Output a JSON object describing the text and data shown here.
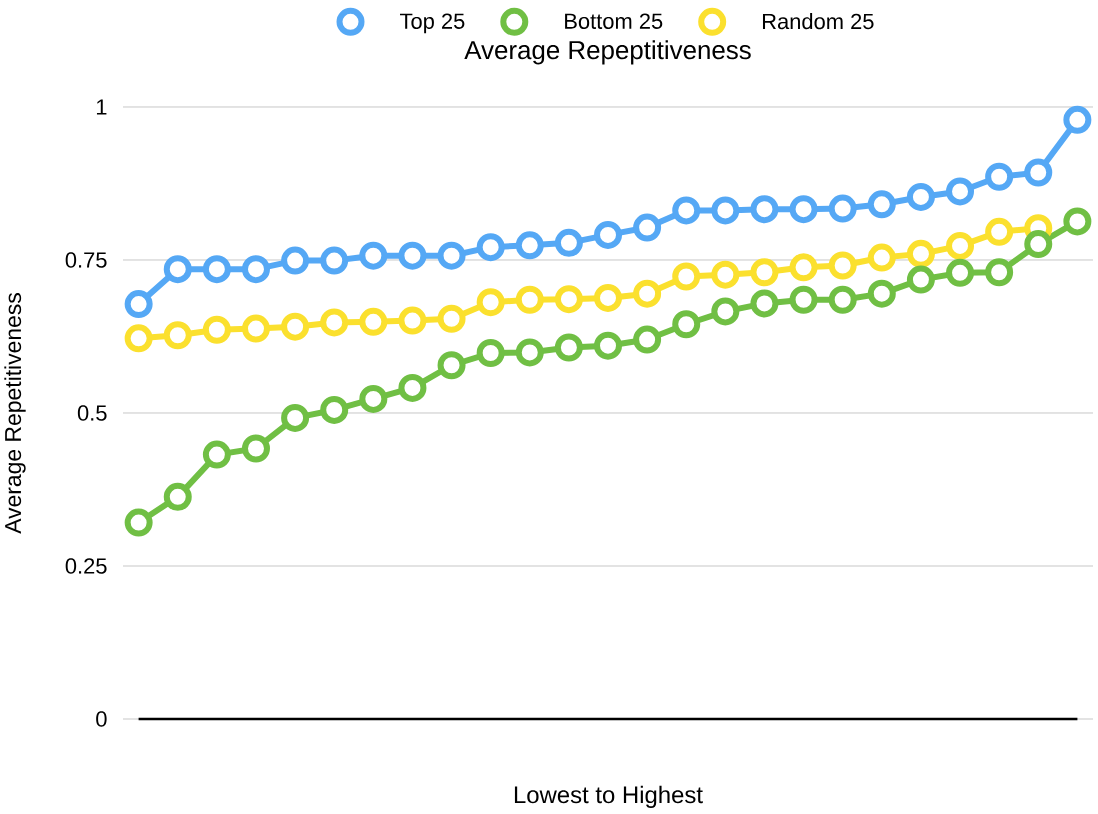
{
  "chart_data": {
    "type": "line",
    "title": "Average Repeptitiveness",
    "xlabel": "Lowest to Highest",
    "ylabel": "Average Repetitiveness",
    "categories": [
      null,
      null,
      null,
      null,
      null,
      null,
      null,
      null,
      null,
      null,
      null,
      null,
      null,
      null,
      null,
      null,
      null,
      null,
      null,
      null,
      null,
      null,
      null,
      null,
      null
    ],
    "series": [
      {
        "name": "Top 25",
        "color": "#55a8f5",
        "values": [
          0.678,
          0.735,
          0.735,
          0.735,
          0.749,
          0.749,
          0.757,
          0.757,
          0.757,
          0.771,
          0.774,
          0.778,
          0.791,
          0.803,
          0.831,
          0.831,
          0.833,
          0.833,
          0.834,
          0.841,
          0.853,
          0.862,
          0.886,
          0.893,
          0.979
        ]
      },
      {
        "name": "Bottom 25",
        "color": "#70bf44",
        "values": [
          0.321,
          0.363,
          0.432,
          0.442,
          0.492,
          0.505,
          0.523,
          0.541,
          0.578,
          0.598,
          0.599,
          0.607,
          0.61,
          0.62,
          0.645,
          0.666,
          0.679,
          0.685,
          0.685,
          0.695,
          0.718,
          0.729,
          0.73,
          0.776,
          0.813
        ]
      },
      {
        "name": "Random 25",
        "color": "#fbe02e",
        "values": [
          0.622,
          0.627,
          0.636,
          0.638,
          0.641,
          0.648,
          0.649,
          0.651,
          0.654,
          0.681,
          0.685,
          0.686,
          0.688,
          0.695,
          0.723,
          0.726,
          0.73,
          0.738,
          0.741,
          0.754,
          0.76,
          0.773,
          0.796,
          0.802,
          null
        ]
      }
    ],
    "ylim": [
      0,
      1
    ],
    "yticks": [
      0,
      0.25,
      0.5,
      0.75,
      1
    ],
    "grid": "y",
    "legend": "top",
    "marker": "circle"
  }
}
